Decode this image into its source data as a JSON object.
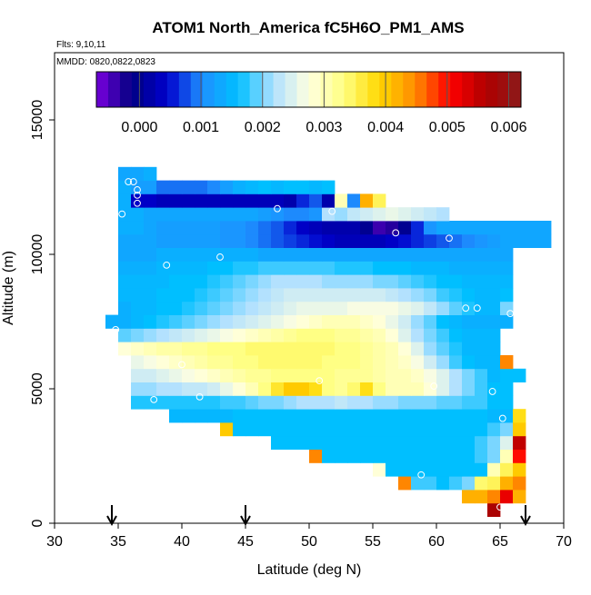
{
  "chart_data": {
    "type": "heatmap",
    "title": "ATOM1 North_America fC5H6O_PM1_AMS",
    "subtitle_flights": "Flts: 9,10,11",
    "subtitle_dates": "MMDD: 0820,0822,0823",
    "xlabel": "Latitude (deg N)",
    "ylabel": "Altitude (m)",
    "xlim": [
      30,
      70
    ],
    "ylim": [
      0,
      17500
    ],
    "x_ticks": [
      "30",
      "35",
      "40",
      "45",
      "50",
      "55",
      "60",
      "65",
      "70"
    ],
    "y_ticks": [
      "0",
      "5000",
      "10000",
      "15000"
    ],
    "colorbar": {
      "range": [
        -0.0007,
        0.0062
      ],
      "ticks": [
        "0.000",
        "0.001",
        "0.002",
        "0.003",
        "0.004",
        "0.005",
        "0.006"
      ],
      "colors": [
        "#7b00e0",
        "#000080",
        "#0000cd",
        "#1e90ff",
        "#00bfff",
        "#b0e0ff",
        "#ffffe0",
        "#ffff80",
        "#ffd700",
        "#ff8c00",
        "#ff0000",
        "#b00000",
        "#8b1a1a"
      ]
    },
    "arrows_latitude": [
      34.5,
      45,
      67
    ],
    "cell_size": {
      "lat": 1.0,
      "alt": 500
    },
    "rows": [
      {
        "alt": 500,
        "lat0": 64.5,
        "vals": [
          0.0057
        ]
      },
      {
        "alt": 1000,
        "lat0": 62.5,
        "vals": [
          0.0042,
          0.0042,
          0.0045,
          0.0052,
          0.0042
        ]
      },
      {
        "alt": 1500,
        "lat0": 57.5,
        "vals": [
          0.0045,
          0.0018,
          0.0018,
          0.0016,
          0.0018,
          0.002,
          0.0034,
          0.0035,
          0.0042,
          0.0045
        ]
      },
      {
        "alt": 2000,
        "lat0": 55.5,
        "vals": [
          0.0028,
          0.0016,
          0.0016,
          0.0016,
          0.0016,
          0.0016,
          0.0016,
          0.0016,
          0.0016,
          0.003,
          0.0035,
          0.004
        ]
      },
      {
        "alt": 2500,
        "lat0": 50.5,
        "vals": [
          0.0045,
          0.0016,
          0.0016,
          0.0016,
          0.0016,
          0.0016,
          0.0016,
          0.0016,
          0.0016,
          0.0016,
          0.0016,
          0.0016,
          0.0016,
          0.0018,
          0.002,
          0.003,
          0.005
        ]
      },
      {
        "alt": 3000,
        "lat0": 47.5,
        "vals": [
          0.0016,
          0.0016,
          0.0016,
          0.0016,
          0.0016,
          0.0016,
          0.0016,
          0.0016,
          0.0016,
          0.0016,
          0.0016,
          0.0016,
          0.0016,
          0.0016,
          0.0016,
          0.0016,
          0.0018,
          0.002,
          0.0025,
          0.0055
        ]
      },
      {
        "alt": 3500,
        "lat0": 43.5,
        "vals": [
          0.004,
          0.0016,
          0.0016,
          0.0016,
          0.0016,
          0.0016,
          0.0016,
          0.0016,
          0.0016,
          0.0016,
          0.0016,
          0.0016,
          0.0016,
          0.0016,
          0.0016,
          0.0016,
          0.0016,
          0.0016,
          0.0016,
          0.0016,
          0.0016,
          0.0018,
          0.002,
          0.004
        ]
      },
      {
        "alt": 4000,
        "lat0": 39.5,
        "vals": [
          0.0015,
          0.0015,
          0.0015,
          0.0015,
          0.0015,
          0.0016,
          0.0016,
          0.0016,
          0.0016,
          0.0016,
          0.0016,
          0.0016,
          0.0016,
          0.0016,
          0.0016,
          0.0016,
          0.0016,
          0.0016,
          0.0016,
          0.0016,
          0.0016,
          0.0016,
          0.0016,
          0.0016,
          0.0016,
          0.0015,
          0.0015,
          0.0038
        ]
      },
      {
        "alt": 4500,
        "lat0": 36.5,
        "vals": [
          0.0017,
          0.0017,
          0.0017,
          0.0017,
          0.0017,
          0.0017,
          0.0017,
          0.0018,
          0.0018,
          0.0019,
          0.002,
          0.002,
          0.0021,
          0.0022,
          0.0022,
          0.0022,
          0.0023,
          0.0022,
          0.0022,
          0.0021,
          0.0021,
          0.002,
          0.002,
          0.002,
          0.0019,
          0.0019,
          0.0018,
          0.0018,
          0.0016,
          0.0016
        ]
      },
      {
        "alt": 5000,
        "lat0": 36.5,
        "vals": [
          0.0021,
          0.0021,
          0.0022,
          0.0022,
          0.0023,
          0.0023,
          0.0024,
          0.0026,
          0.0028,
          0.003,
          0.0033,
          0.0037,
          0.004,
          0.004,
          0.0038,
          0.0033,
          0.0032,
          0.0034,
          0.0038,
          0.0033,
          0.003,
          0.003,
          0.003,
          0.0028,
          0.0025,
          0.0022,
          0.002,
          0.0018,
          0.0016,
          0.0016
        ]
      },
      {
        "alt": 5500,
        "lat0": 36.5,
        "vals": [
          0.0024,
          0.0024,
          0.0025,
          0.0026,
          0.0027,
          0.0028,
          0.0029,
          0.003,
          0.0031,
          0.0032,
          0.0032,
          0.0033,
          0.0033,
          0.0033,
          0.0033,
          0.0033,
          0.0032,
          0.0032,
          0.0032,
          0.0031,
          0.003,
          0.003,
          0.0029,
          0.0027,
          0.0025,
          0.0022,
          0.002,
          0.0018,
          0.0015,
          0.0016,
          0.0016
        ]
      },
      {
        "alt": 6000,
        "lat0": 36.5,
        "vals": [
          0.0026,
          0.0027,
          0.0028,
          0.0029,
          0.003,
          0.0031,
          0.0032,
          0.0032,
          0.0033,
          0.0033,
          0.0034,
          0.0034,
          0.0034,
          0.0034,
          0.0034,
          0.0033,
          0.0033,
          0.0033,
          0.0032,
          0.0031,
          0.003,
          0.0029,
          0.0027,
          0.0024,
          0.0021,
          0.0018,
          0.0016,
          0.0015,
          0.0015,
          0.0045
        ]
      },
      {
        "alt": 6500,
        "lat0": 35.5,
        "vals": [
          0.0028,
          0.0029,
          0.003,
          0.0031,
          0.0031,
          0.0032,
          0.0032,
          0.0033,
          0.0033,
          0.0033,
          0.0034,
          0.0034,
          0.0034,
          0.0034,
          0.0034,
          0.0034,
          0.0034,
          0.0033,
          0.0033,
          0.0032,
          0.0031,
          0.003,
          0.0028,
          0.0025,
          0.0021,
          0.0019,
          0.0017,
          0.0015,
          0.0015,
          0.0015
        ]
      },
      {
        "alt": 7000,
        "lat0": 35.5,
        "vals": [
          0.0019,
          0.002,
          0.0021,
          0.0022,
          0.0023,
          0.0024,
          0.0025,
          0.0026,
          0.0027,
          0.0028,
          0.0029,
          0.003,
          0.0031,
          0.0032,
          0.0033,
          0.0033,
          0.0033,
          0.0032,
          0.0032,
          0.0031,
          0.003,
          0.0028,
          0.0025,
          0.0022,
          0.002,
          0.0018,
          0.0016,
          0.0015,
          0.0015,
          0.0015
        ]
      },
      {
        "alt": 7500,
        "lat0": 34.5,
        "vals": [
          0.0014,
          0.0014,
          0.0015,
          0.0016,
          0.0017,
          0.0018,
          0.0019,
          0.002,
          0.0021,
          0.0022,
          0.0023,
          0.0024,
          0.0025,
          0.0026,
          0.0027,
          0.0028,
          0.0029,
          0.003,
          0.003,
          0.003,
          0.0029,
          0.0028,
          0.0026,
          0.0024,
          0.0021,
          0.0019,
          0.0016,
          0.0015,
          0.0014,
          0.0014,
          0.0014,
          0.0014
        ]
      },
      {
        "alt": 8000,
        "lat0": 35.5,
        "vals": [
          0.0014,
          0.0015,
          0.0015,
          0.0016,
          0.0016,
          0.0017,
          0.0018,
          0.0019,
          0.002,
          0.0021,
          0.0022,
          0.0023,
          0.0024,
          0.0025,
          0.0026,
          0.0026,
          0.0026,
          0.0026,
          0.0027,
          0.0027,
          0.0027,
          0.0027,
          0.0026,
          0.0025,
          0.0023,
          0.0021,
          0.0019,
          0.0017,
          0.0015,
          0.0015,
          0.002
        ]
      },
      {
        "alt": 8500,
        "lat0": 35.5,
        "vals": [
          0.0015,
          0.0015,
          0.0015,
          0.0016,
          0.0016,
          0.0016,
          0.0017,
          0.0018,
          0.0019,
          0.002,
          0.0021,
          0.0022,
          0.0023,
          0.0024,
          0.0024,
          0.0024,
          0.0024,
          0.0024,
          0.0024,
          0.0024,
          0.0024,
          0.0023,
          0.0022,
          0.0021,
          0.002,
          0.0018,
          0.0017,
          0.0016,
          0.0015,
          0.0015,
          0.0016
        ]
      },
      {
        "alt": 9000,
        "lat0": 35.5,
        "vals": [
          0.0015,
          0.0015,
          0.0015,
          0.0015,
          0.0016,
          0.0016,
          0.0016,
          0.0017,
          0.0018,
          0.0019,
          0.002,
          0.0021,
          0.0022,
          0.0022,
          0.0022,
          0.0022,
          0.0021,
          0.0021,
          0.0021,
          0.0021,
          0.002,
          0.002,
          0.0019,
          0.0018,
          0.0017,
          0.0016,
          0.0016,
          0.0015,
          0.0015,
          0.0015,
          0.0015
        ]
      },
      {
        "alt": 9500,
        "lat0": 35.5,
        "vals": [
          0.0014,
          0.0014,
          0.0014,
          0.0015,
          0.0015,
          0.0015,
          0.0015,
          0.0016,
          0.0016,
          0.0017,
          0.0017,
          0.0018,
          0.0018,
          0.0018,
          0.0018,
          0.0018,
          0.0018,
          0.0017,
          0.0017,
          0.0017,
          0.0016,
          0.0016,
          0.0016,
          0.0015,
          0.0015,
          0.0015,
          0.0014,
          0.0014,
          0.0014,
          0.0014,
          0.0014
        ]
      },
      {
        "alt": 10000,
        "lat0": 35.5,
        "vals": [
          0.0013,
          0.0013,
          0.0013,
          0.0014,
          0.0014,
          0.0014,
          0.0014,
          0.0014,
          0.0014,
          0.0014,
          0.0014,
          0.0013,
          0.0013,
          0.0013,
          0.0013,
          0.0013,
          0.0013,
          0.0013,
          0.0013,
          0.0013,
          0.0013,
          0.0013,
          0.0013,
          0.0013,
          0.0013,
          0.0013,
          0.0013,
          0.0013,
          0.0013,
          0.0013,
          0.0013
        ]
      },
      {
        "alt": 10500,
        "lat0": 35.5,
        "vals": [
          0.0013,
          0.0013,
          0.0013,
          0.0012,
          0.0012,
          0.0012,
          0.0012,
          0.0012,
          0.0011,
          0.0011,
          0.001,
          0.0009,
          0.0008,
          0.0007,
          0.0006,
          0.0005,
          0.0004,
          0.0003,
          0.0003,
          0.0003,
          0.0003,
          0.0004,
          0.0005,
          0.0006,
          0.0007,
          0.0008,
          0.0009,
          0.001,
          0.0011,
          0.0012,
          0.0013,
          0.0013,
          0.0013,
          0.0013
        ]
      },
      {
        "alt": 11000,
        "lat0": 35.5,
        "vals": [
          0.0014,
          0.0014,
          0.0013,
          0.0012,
          0.0012,
          0.0012,
          0.0012,
          0.0012,
          0.0011,
          0.0011,
          0.001,
          0.0009,
          0.0008,
          0.0006,
          0.0004,
          0.0003,
          0.0002,
          0.0002,
          0.0002,
          0.0,
          -0.0004,
          -0.0003,
          0.0,
          0.0006,
          0.0011,
          0.0013,
          0.0013,
          0.0013,
          0.0013,
          0.0013,
          0.0013,
          0.0013,
          0.0013,
          0.0013
        ]
      },
      {
        "alt": 11500,
        "lat0": 35.5,
        "vals": [
          0.0014,
          0.0014,
          0.0013,
          0.0013,
          0.0013,
          0.0013,
          0.0013,
          0.0013,
          0.0013,
          0.0013,
          0.0013,
          0.0012,
          0.0011,
          0.001,
          0.001,
          0.0011,
          0.0022,
          0.0021,
          0.0023,
          0.0024,
          0.0025,
          0.0026,
          0.0025,
          0.0024,
          0.0023,
          0.0022
        ]
      },
      {
        "alt": 12000,
        "lat0": 35.5,
        "vals": [
          0.0014,
          0.0004,
          0.0004,
          0.0003,
          0.0003,
          0.0003,
          0.0003,
          0.0003,
          0.0003,
          0.0003,
          0.0003,
          0.0003,
          0.0003,
          0.0002,
          0.0006,
          0.0008,
          0.0002,
          0.003,
          0.001,
          0.0042,
          0.0035
        ]
      },
      {
        "alt": 12500,
        "lat0": 35.5,
        "vals": [
          0.0014,
          0.0012,
          0.0012,
          0.0009,
          0.0009,
          0.0009,
          0.0009,
          0.001,
          0.0012,
          0.0014,
          0.0015,
          0.0016,
          0.0015,
          0.0016,
          0.0016,
          0.0015,
          0.0016
        ]
      },
      {
        "alt": 13000,
        "lat0": 35.5,
        "vals": [
          0.0013,
          0.0013,
          0.0014
        ]
      }
    ],
    "points": [
      {
        "lat": 34.8,
        "alt": 7200
      },
      {
        "lat": 35.3,
        "alt": 11500
      },
      {
        "lat": 35.8,
        "alt": 12700
      },
      {
        "lat": 36.2,
        "alt": 12700
      },
      {
        "lat": 36.5,
        "alt": 12400
      },
      {
        "lat": 36.5,
        "alt": 12200
      },
      {
        "lat": 36.5,
        "alt": 11900
      },
      {
        "lat": 37.8,
        "alt": 4600
      },
      {
        "lat": 38.8,
        "alt": 9600
      },
      {
        "lat": 40.0,
        "alt": 5900
      },
      {
        "lat": 41.4,
        "alt": 4700
      },
      {
        "lat": 43.0,
        "alt": 9900
      },
      {
        "lat": 47.5,
        "alt": 11700
      },
      {
        "lat": 50.8,
        "alt": 5300
      },
      {
        "lat": 51.8,
        "alt": 11600
      },
      {
        "lat": 56.8,
        "alt": 10800
      },
      {
        "lat": 58.8,
        "alt": 1800
      },
      {
        "lat": 59.8,
        "alt": 5100
      },
      {
        "lat": 61.0,
        "alt": 10600
      },
      {
        "lat": 62.3,
        "alt": 8000
      },
      {
        "lat": 63.2,
        "alt": 8000
      },
      {
        "lat": 64.4,
        "alt": 4900
      },
      {
        "lat": 65.2,
        "alt": 3900
      },
      {
        "lat": 65.0,
        "alt": 600
      },
      {
        "lat": 65.8,
        "alt": 7800
      },
      {
        "lat": 69.8,
        "alt": 10900
      }
    ]
  }
}
